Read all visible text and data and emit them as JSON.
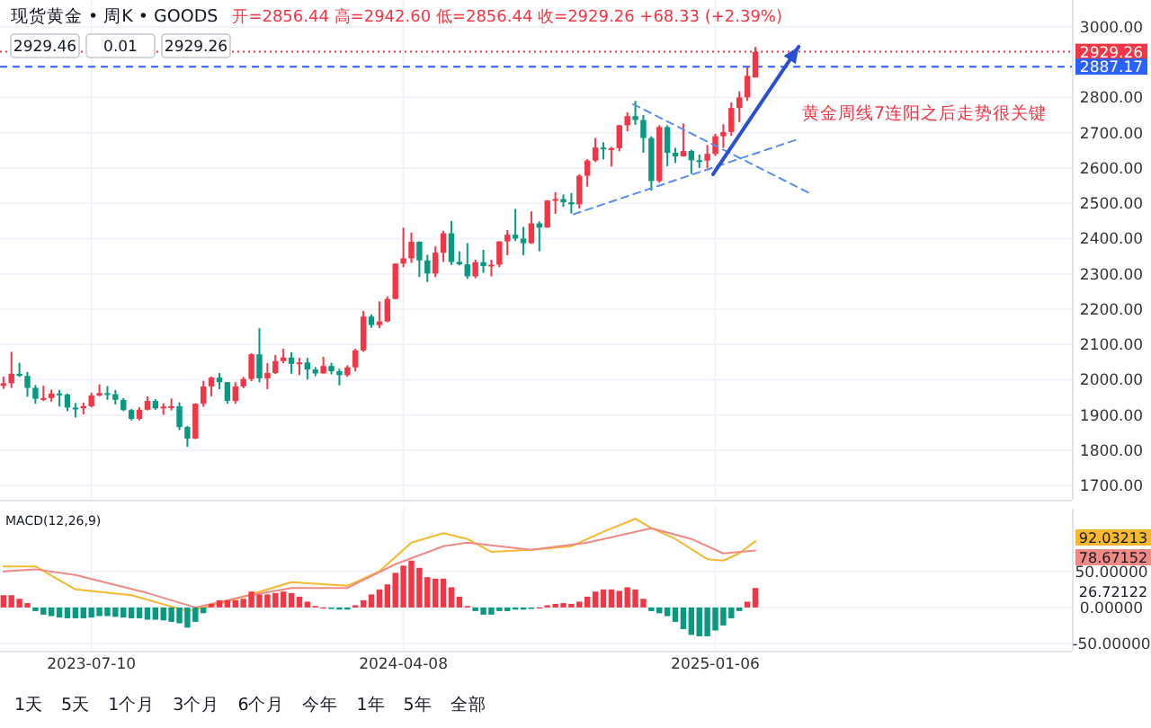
{
  "chart_data": [
    {
      "type": "candlestick",
      "title": "现货黄金 • 周K • GOODS",
      "subtitle": "开=2856.44 高=2942.60 低=2856.44 收=2929.26 +68.33 (+2.39%)",
      "x": [
        "2023-04-24",
        "2023-05-01",
        "2023-05-08",
        "2023-05-15",
        "2023-05-22",
        "2023-05-29",
        "2023-06-05",
        "2023-06-12",
        "2023-06-19",
        "2023-06-26",
        "2023-07-03",
        "2023-07-10",
        "2023-07-17",
        "2023-07-24",
        "2023-07-31",
        "2023-08-07",
        "2023-08-14",
        "2023-08-21",
        "2023-08-28",
        "2023-09-04",
        "2023-09-11",
        "2023-09-18",
        "2023-09-25",
        "2023-10-02",
        "2023-10-09",
        "2023-10-16",
        "2023-10-23",
        "2023-10-30",
        "2023-11-06",
        "2023-11-13",
        "2023-11-20",
        "2023-11-27",
        "2023-12-04",
        "2023-12-11",
        "2023-12-18",
        "2023-12-25",
        "2024-01-01",
        "2024-01-08",
        "2024-01-15",
        "2024-01-22",
        "2024-01-29",
        "2024-02-05",
        "2024-02-12",
        "2024-02-19",
        "2024-02-26",
        "2024-03-04",
        "2024-03-11",
        "2024-03-18",
        "2024-03-25",
        "2024-04-01",
        "2024-04-08",
        "2024-04-15",
        "2024-04-22",
        "2024-04-29",
        "2024-05-06",
        "2024-05-13",
        "2024-05-20",
        "2024-05-27",
        "2024-06-03",
        "2024-06-10",
        "2024-06-17",
        "2024-06-24",
        "2024-07-01",
        "2024-07-08",
        "2024-07-15",
        "2024-07-22",
        "2024-07-29",
        "2024-08-05",
        "2024-08-12",
        "2024-08-19",
        "2024-08-26",
        "2024-09-02",
        "2024-09-09",
        "2024-09-16",
        "2024-09-23",
        "2024-09-30",
        "2024-10-07",
        "2024-10-14",
        "2024-10-21",
        "2024-10-28",
        "2024-11-04",
        "2024-11-11",
        "2024-11-18",
        "2024-11-25",
        "2024-12-02",
        "2024-12-09",
        "2024-12-16",
        "2024-12-23",
        "2024-12-30",
        "2025-01-06",
        "2025-01-13",
        "2025-01-20",
        "2025-01-27",
        "2025-02-03",
        "2025-02-10"
      ],
      "ohlc": [
        [
          1983,
          2009,
          1974,
          1990
        ],
        [
          1990,
          2079,
          1977,
          2017
        ],
        [
          2017,
          2048,
          2008,
          2011
        ],
        [
          2011,
          2022,
          1952,
          1977
        ],
        [
          1977,
          1985,
          1932,
          1946
        ],
        [
          1946,
          1983,
          1940,
          1948
        ],
        [
          1948,
          1972,
          1938,
          1961
        ],
        [
          1961,
          1971,
          1924,
          1958
        ],
        [
          1958,
          1961,
          1911,
          1921
        ],
        [
          1921,
          1934,
          1893,
          1919
        ],
        [
          1919,
          1935,
          1902,
          1925
        ],
        [
          1925,
          1963,
          1922,
          1955
        ],
        [
          1955,
          1987,
          1953,
          1962
        ],
        [
          1962,
          1982,
          1943,
          1959
        ],
        [
          1959,
          1971,
          1930,
          1943
        ],
        [
          1943,
          1948,
          1911,
          1914
        ],
        [
          1914,
          1917,
          1885,
          1889
        ],
        [
          1889,
          1922,
          1885,
          1915
        ],
        [
          1915,
          1953,
          1913,
          1940
        ],
        [
          1940,
          1945,
          1915,
          1919
        ],
        [
          1919,
          1933,
          1901,
          1924
        ],
        [
          1924,
          1947,
          1913,
          1925
        ],
        [
          1925,
          1936,
          1857,
          1866
        ],
        [
          1866,
          1869,
          1810,
          1833
        ],
        [
          1833,
          1933,
          1832,
          1932
        ],
        [
          1932,
          1997,
          1923,
          1981
        ],
        [
          1981,
          2009,
          1953,
          2006
        ],
        [
          2006,
          2019,
          1973,
          1993
        ],
        [
          1993,
          1993,
          1932,
          1940
        ],
        [
          1940,
          1993,
          1932,
          1981
        ],
        [
          1981,
          2008,
          1976,
          2002
        ],
        [
          2002,
          2075,
          1996,
          2072
        ],
        [
          2072,
          2146,
          1993,
          2004
        ],
        [
          2004,
          2047,
          1973,
          2019
        ],
        [
          2019,
          2070,
          2016,
          2053
        ],
        [
          2053,
          2088,
          2047,
          2063
        ],
        [
          2063,
          2078,
          2017,
          2045
        ],
        [
          2045,
          2062,
          2013,
          2049
        ],
        [
          2049,
          2062,
          2001,
          2029
        ],
        [
          2029,
          2036,
          2010,
          2018
        ],
        [
          2018,
          2065,
          2017,
          2039
        ],
        [
          2039,
          2048,
          2015,
          2024
        ],
        [
          2024,
          2031,
          1984,
          2013
        ],
        [
          2013,
          2041,
          2008,
          2035
        ],
        [
          2035,
          2088,
          2024,
          2083
        ],
        [
          2083,
          2195,
          2079,
          2179
        ],
        [
          2179,
          2185,
          2147,
          2155
        ],
        [
          2155,
          2222,
          2146,
          2165
        ],
        [
          2165,
          2236,
          2163,
          2229
        ],
        [
          2229,
          2330,
          2228,
          2329
        ],
        [
          2329,
          2431,
          2319,
          2344
        ],
        [
          2344,
          2417,
          2331,
          2391
        ],
        [
          2391,
          2392,
          2291,
          2338
        ],
        [
          2338,
          2354,
          2277,
          2301
        ],
        [
          2301,
          2378,
          2291,
          2360
        ],
        [
          2360,
          2422,
          2334,
          2415
        ],
        [
          2415,
          2450,
          2325,
          2334
        ],
        [
          2334,
          2364,
          2324,
          2327
        ],
        [
          2327,
          2387,
          2286,
          2293
        ],
        [
          2293,
          2340,
          2287,
          2333
        ],
        [
          2333,
          2368,
          2303,
          2322
        ],
        [
          2322,
          2340,
          2293,
          2326
        ],
        [
          2326,
          2392,
          2319,
          2392
        ],
        [
          2392,
          2424,
          2353,
          2411
        ],
        [
          2411,
          2484,
          2393,
          2400
        ],
        [
          2400,
          2433,
          2353,
          2387
        ],
        [
          2387,
          2477,
          2385,
          2443
        ],
        [
          2443,
          2449,
          2364,
          2431
        ],
        [
          2431,
          2509,
          2431,
          2508
        ],
        [
          2508,
          2531,
          2470,
          2512
        ],
        [
          2512,
          2525,
          2490,
          2503
        ],
        [
          2503,
          2529,
          2471,
          2497
        ],
        [
          2497,
          2582,
          2485,
          2578
        ],
        [
          2578,
          2625,
          2547,
          2621
        ],
        [
          2621,
          2685,
          2617,
          2658
        ],
        [
          2658,
          2673,
          2624,
          2653
        ],
        [
          2653,
          2660,
          2604,
          2656
        ],
        [
          2656,
          2722,
          2647,
          2721
        ],
        [
          2721,
          2758,
          2704,
          2747
        ],
        [
          2747,
          2790,
          2722,
          2736
        ],
        [
          2736,
          2750,
          2643,
          2685
        ],
        [
          2685,
          2690,
          2536,
          2563
        ],
        [
          2563,
          2721,
          2558,
          2716
        ],
        [
          2716,
          2721,
          2605,
          2643
        ],
        [
          2643,
          2657,
          2614,
          2633
        ],
        [
          2633,
          2726,
          2632,
          2648
        ],
        [
          2648,
          2652,
          2583,
          2622
        ],
        [
          2622,
          2638,
          2600,
          2621
        ],
        [
          2621,
          2665,
          2599,
          2640
        ],
        [
          2640,
          2697,
          2634,
          2690
        ],
        [
          2690,
          2724,
          2657,
          2702
        ],
        [
          2702,
          2786,
          2691,
          2770
        ],
        [
          2770,
          2817,
          2730,
          2800
        ],
        [
          2800,
          2886,
          2790,
          2861
        ],
        [
          2856.44,
          2942.6,
          2856.44,
          2929.26
        ]
      ],
      "colors": [
        "#f23645",
        "#f23645",
        "#089981",
        "#089981",
        "#089981",
        "#f23645",
        "#f23645",
        "#089981",
        "#089981",
        "#089981",
        "#f23645",
        "#f23645",
        "#f23645",
        "#089981",
        "#089981",
        "#089981",
        "#089981",
        "#f23645",
        "#f23645",
        "#089981",
        "#f23645",
        "#f23645",
        "#089981",
        "#089981",
        "#f23645",
        "#f23645",
        "#f23645",
        "#089981",
        "#089981",
        "#f23645",
        "#f23645",
        "#f23645",
        "#089981",
        "#f23645",
        "#f23645",
        "#f23645",
        "#089981",
        "#f23645",
        "#089981",
        "#089981",
        "#f23645",
        "#089981",
        "#089981",
        "#f23645",
        "#f23645",
        "#f23645",
        "#089981",
        "#f23645",
        "#f23645",
        "#f23645",
        "#f23645",
        "#f23645",
        "#089981",
        "#089981",
        "#f23645",
        "#f23645",
        "#089981",
        "#089981",
        "#089981",
        "#f23645",
        "#089981",
        "#f23645",
        "#f23645",
        "#f23645",
        "#089981",
        "#089981",
        "#f23645",
        "#089981",
        "#f23645",
        "#f23645",
        "#089981",
        "#089981",
        "#f23645",
        "#f23645",
        "#f23645",
        "#089981",
        "#f23645",
        "#f23645",
        "#f23645",
        "#089981",
        "#089981",
        "#089981",
        "#f23645",
        "#089981",
        "#089981",
        "#f23645",
        "#089981",
        "#089981",
        "#f23645",
        "#f23645",
        "#f23645",
        "#f23645",
        "#f23645",
        "#f23645",
        "#f23645"
      ],
      "series": [
        {
          "type": "line",
          "x": [
            "2024-10-26",
            "2025-03-31"
          ],
          "values": [
            2781,
            2526
          ],
          "color": "#5b8def",
          "line_style": "dashed"
        },
        {
          "type": "line",
          "x": [
            "2024-09-04",
            "2025-03-17"
          ],
          "values": [
            2469,
            2679
          ],
          "color": "#5b8def",
          "line_style": "dashed"
        },
        {
          "type": "line",
          "x": [
            "2025-01-04",
            "2025-03-20"
          ],
          "values": [
            2582,
            2944
          ],
          "color": "#2a4fd0",
          "line_style": "solid"
        }
      ],
      "xlim": [
        "2023-04-21",
        "2025-11-14"
      ],
      "xticks": [
        "2023-07-10",
        "2024-04-08",
        "2025-01-06"
      ],
      "ylim": [
        1660,
        3076
      ],
      "yticks": [
        {
          "value": 1700,
          "label": "1700.00"
        },
        {
          "value": 1800,
          "label": "1800.00"
        },
        {
          "value": 1900,
          "label": "1900.00"
        },
        {
          "value": 2000,
          "label": "2000.00"
        },
        {
          "value": 2100,
          "label": "2100.00"
        },
        {
          "value": 2200,
          "label": "2200.00"
        },
        {
          "value": 2300,
          "label": "2300.00"
        },
        {
          "value": 2400,
          "label": "2400.00"
        },
        {
          "value": 2500,
          "label": "2500.00"
        },
        {
          "value": 2600,
          "label": "2600.00"
        },
        {
          "value": 2700,
          "label": "2700.00"
        },
        {
          "value": 2800,
          "label": "2800.00"
        },
        {
          "value": 3000,
          "label": "3000.00"
        }
      ],
      "grid": true,
      "tick_labels": "y",
      "ref_lines": [
        {
          "axis": "y",
          "value": 2929.26,
          "label": "2929.26",
          "color": "#f23645",
          "line_style": "dotted"
        },
        {
          "axis": "y",
          "value": 2887.17,
          "label": "2887.17",
          "color": "#2962ff",
          "line_style": "dashed"
        }
      ],
      "annotations": [
        "2929.46",
        "0.01",
        "2929.26",
        "黄金周线7连阳之后走势很关键"
      ]
    },
    {
      "type": "bar",
      "title": "MACD(12,26,9)",
      "x": [
        "2023-04-24",
        "2023-05-01",
        "2023-05-08",
        "2023-05-15",
        "2023-05-22",
        "2023-05-29",
        "2023-06-05",
        "2023-06-12",
        "2023-06-19",
        "2023-06-26",
        "2023-07-03",
        "2023-07-10",
        "2023-07-17",
        "2023-07-24",
        "2023-07-31",
        "2023-08-07",
        "2023-08-14",
        "2023-08-21",
        "2023-08-28",
        "2023-09-04",
        "2023-09-11",
        "2023-09-18",
        "2023-09-25",
        "2023-10-02",
        "2023-10-09",
        "2023-10-16",
        "2023-10-23",
        "2023-10-30",
        "2023-11-06",
        "2023-11-13",
        "2023-11-20",
        "2023-11-27",
        "2023-12-04",
        "2023-12-11",
        "2023-12-18",
        "2023-12-25",
        "2024-01-01",
        "2024-01-08",
        "2024-01-15",
        "2024-01-22",
        "2024-01-29",
        "2024-02-05",
        "2024-02-12",
        "2024-02-19",
        "2024-02-26",
        "2024-03-04",
        "2024-03-11",
        "2024-03-18",
        "2024-03-25",
        "2024-04-01",
        "2024-04-08",
        "2024-04-15",
        "2024-04-22",
        "2024-04-29",
        "2024-05-06",
        "2024-05-13",
        "2024-05-20",
        "2024-05-27",
        "2024-06-03",
        "2024-06-10",
        "2024-06-17",
        "2024-06-24",
        "2024-07-01",
        "2024-07-08",
        "2024-07-15",
        "2024-07-22",
        "2024-07-29",
        "2024-08-05",
        "2024-08-12",
        "2024-08-19",
        "2024-08-26",
        "2024-09-02",
        "2024-09-09",
        "2024-09-16",
        "2024-09-23",
        "2024-09-30",
        "2024-10-07",
        "2024-10-14",
        "2024-10-21",
        "2024-10-28",
        "2024-11-04",
        "2024-11-11",
        "2024-11-18",
        "2024-11-25",
        "2024-12-02",
        "2024-12-09",
        "2024-12-16",
        "2024-12-23",
        "2024-12-30",
        "2025-01-06",
        "2025-01-13",
        "2025-01-20",
        "2025-01-27",
        "2025-02-03",
        "2025-02-10"
      ],
      "series": [
        {
          "type": "bar",
          "values": [
            17,
            17,
            12,
            6,
            -5,
            -10,
            -12,
            -14,
            -15,
            -15,
            -15,
            -14,
            -12,
            -12,
            -13,
            -14,
            -15,
            -15,
            -17,
            -17,
            -18,
            -20,
            -22,
            -28,
            -20,
            -8,
            5,
            10,
            10,
            10,
            12,
            22,
            18,
            18,
            20,
            22,
            20,
            15,
            8,
            2,
            0,
            -2,
            -3,
            -3,
            3,
            10,
            18,
            25,
            32,
            48,
            58,
            65,
            55,
            42,
            40,
            40,
            28,
            15,
            2,
            -5,
            -10,
            -10,
            -5,
            -5,
            -3,
            -3,
            -2,
            0,
            3,
            5,
            6,
            5,
            8,
            15,
            22,
            25,
            25,
            23,
            28,
            25,
            12,
            -5,
            -8,
            -12,
            -20,
            -30,
            -38,
            -40,
            -40,
            -32,
            -25,
            -15,
            -5,
            8,
            27
          ],
          "colors": [
            "#f23645",
            "#f23645",
            "#f23645",
            "#f23645",
            "#089981",
            "#089981",
            "#089981",
            "#089981",
            "#089981",
            "#089981",
            "#089981",
            "#089981",
            "#089981",
            "#089981",
            "#089981",
            "#089981",
            "#089981",
            "#089981",
            "#089981",
            "#089981",
            "#089981",
            "#089981",
            "#089981",
            "#089981",
            "#089981",
            "#089981",
            "#f23645",
            "#f23645",
            "#f23645",
            "#f23645",
            "#f23645",
            "#f23645",
            "#f23645",
            "#f23645",
            "#f23645",
            "#f23645",
            "#f23645",
            "#f23645",
            "#f23645",
            "#f23645",
            "#f23645",
            "#089981",
            "#089981",
            "#089981",
            "#f23645",
            "#f23645",
            "#f23645",
            "#f23645",
            "#f23645",
            "#f23645",
            "#f23645",
            "#f23645",
            "#f23645",
            "#f23645",
            "#f23645",
            "#f23645",
            "#f23645",
            "#f23645",
            "#f23645",
            "#089981",
            "#089981",
            "#089981",
            "#089981",
            "#089981",
            "#089981",
            "#089981",
            "#089981",
            "#f23645",
            "#f23645",
            "#f23645",
            "#f23645",
            "#f23645",
            "#f23645",
            "#f23645",
            "#f23645",
            "#f23645",
            "#f23645",
            "#f23645",
            "#f23645",
            "#f23645",
            "#f23645",
            "#089981",
            "#089981",
            "#089981",
            "#089981",
            "#089981",
            "#089981",
            "#089981",
            "#089981",
            "#089981",
            "#089981",
            "#089981",
            "#089981",
            "#f23645",
            "#f23645"
          ]
        },
        {
          "type": "line",
          "color": "#f5b82e",
          "x": [
            "2023-04-24",
            "2023-05-22",
            "2023-06-26",
            "2023-08-14",
            "2023-10-02",
            "2023-10-30",
            "2024-01-01",
            "2024-02-19",
            "2024-03-18",
            "2024-04-15",
            "2024-05-13",
            "2024-06-03",
            "2024-06-24",
            "2024-07-29",
            "2024-09-02",
            "2024-09-30",
            "2024-10-28",
            "2024-11-11",
            "2024-12-02",
            "2024-12-30",
            "2025-01-13",
            "2025-01-27",
            "2025-02-10"
          ],
          "values": [
            57,
            57,
            25,
            17,
            -5,
            5,
            35,
            30,
            50,
            90,
            103,
            95,
            77,
            80,
            85,
            105,
            123,
            110,
            95,
            67,
            65,
            75,
            92
          ]
        },
        {
          "type": "line",
          "color": "#f08a84",
          "x": [
            "2023-04-24",
            "2023-05-22",
            "2023-06-26",
            "2023-08-28",
            "2023-10-09",
            "2023-11-20",
            "2024-01-01",
            "2024-02-19",
            "2024-04-01",
            "2024-05-13",
            "2024-06-03",
            "2024-07-29",
            "2024-09-16",
            "2024-11-11",
            "2024-12-16",
            "2025-01-13",
            "2025-02-10"
          ],
          "values": [
            50,
            53,
            45,
            20,
            0,
            15,
            27,
            27,
            60,
            85,
            90,
            80,
            90,
            110,
            95,
            75,
            79
          ]
        }
      ],
      "xlim": [
        "2023-04-21",
        "2025-11-14"
      ],
      "xticks": [
        "2023-07-10",
        "2024-04-08",
        "2025-01-06"
      ],
      "ylim": [
        -60,
        137
      ],
      "yticks": [
        {
          "value": -50,
          "label": "-50.00000"
        },
        {
          "value": 0,
          "label": "0.00000"
        },
        {
          "value": 50,
          "label": "50.00000"
        }
      ],
      "grid": true,
      "annotations": [
        "92.03213",
        "78.67152",
        "26.72122",
        "1天",
        "5天",
        "1个月",
        "3个月",
        "6个月",
        "今年",
        "1年",
        "5年",
        "全部"
      ]
    }
  ]
}
